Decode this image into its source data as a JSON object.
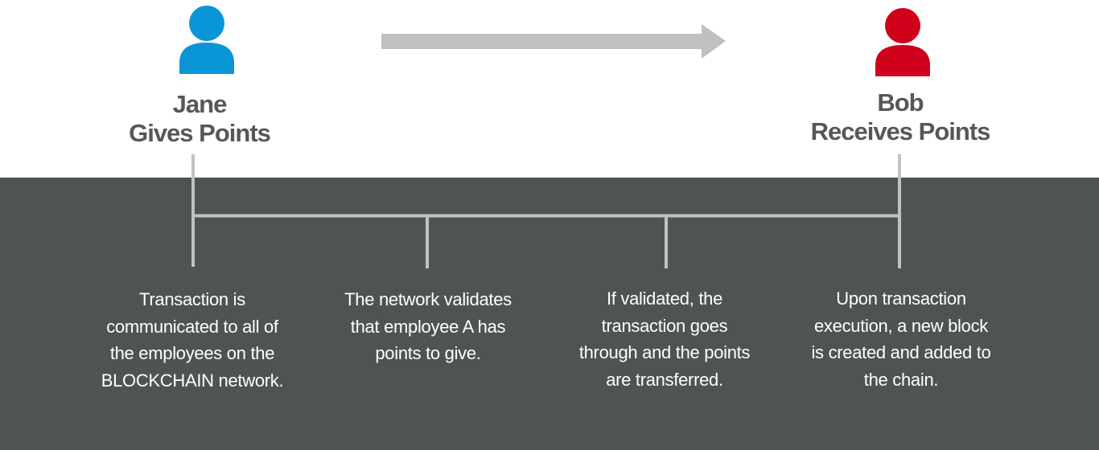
{
  "colors": {
    "giver": "#0a96d6",
    "receiver": "#d0021b",
    "arrow": "#c0c0c0",
    "panel": "#505354",
    "line": "#c2c2c2",
    "label": "#555759"
  },
  "giver": {
    "icon": "person-icon",
    "name": "Jane",
    "action": "Gives Points"
  },
  "receiver": {
    "icon": "person-icon",
    "name": "Bob",
    "action": "Receives Points"
  },
  "steps": [
    {
      "lines": [
        "Transaction is",
        "communicated to all of",
        "the employees on the",
        "BLOCKCHAIN network."
      ]
    },
    {
      "lines": [
        "The network validates",
        "that employee A has",
        "points to give."
      ]
    },
    {
      "lines": [
        "If validated, the",
        "transaction goes",
        "through and the points",
        "are transferred."
      ]
    },
    {
      "lines": [
        "Upon transaction",
        "execution, a new block",
        "is created and added to",
        "the chain."
      ]
    }
  ]
}
